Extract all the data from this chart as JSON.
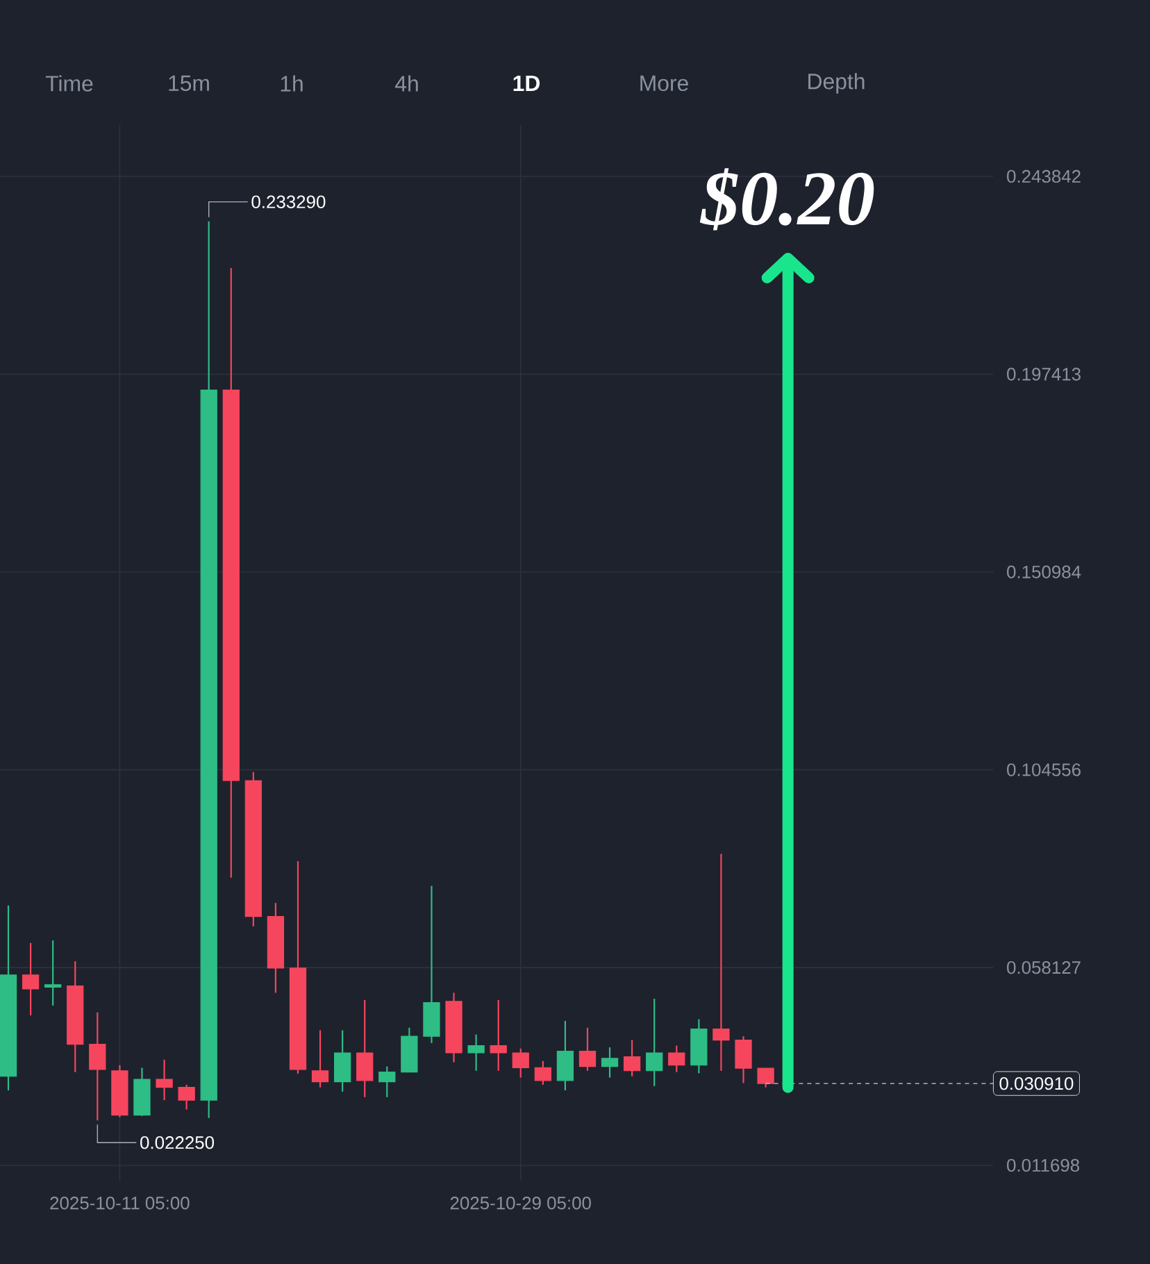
{
  "chart_data": {
    "type": "candlestick",
    "x": [
      "2025-10-06T05:00",
      "2025-10-07T05:00",
      "2025-10-08T05:00",
      "2025-10-09T05:00",
      "2025-10-10T05:00",
      "2025-10-11T05:00",
      "2025-10-12T05:00",
      "2025-10-13T05:00",
      "2025-10-14T05:00",
      "2025-10-15T05:00",
      "2025-10-16T05:00",
      "2025-10-17T05:00",
      "2025-10-18T05:00",
      "2025-10-19T05:00",
      "2025-10-20T05:00",
      "2025-10-21T05:00",
      "2025-10-22T05:00",
      "2025-10-23T05:00",
      "2025-10-24T05:00",
      "2025-10-25T05:00",
      "2025-10-26T05:00",
      "2025-10-27T05:00",
      "2025-10-28T05:00",
      "2025-10-29T05:00",
      "2025-10-30T05:00",
      "2025-10-31T05:00",
      "2025-11-01T05:00",
      "2025-11-02T05:00",
      "2025-11-03T05:00",
      "2025-11-04T05:00",
      "2025-11-05T05:00",
      "2025-11-06T05:00",
      "2025-11-07T05:00",
      "2025-11-08T05:00",
      "2025-11-09T05:00"
    ],
    "ohlc": [
      [
        0.0326,
        0.0727,
        0.0293,
        0.0564
      ],
      [
        0.0564,
        0.0639,
        0.0469,
        0.0531
      ],
      [
        0.0535,
        0.0645,
        0.0492,
        0.0541
      ],
      [
        0.0538,
        0.0596,
        0.0336,
        0.0401
      ],
      [
        0.0401,
        0.0476,
        0.02225,
        0.0342
      ],
      [
        0.0339,
        0.0352,
        0.023,
        0.0235
      ],
      [
        0.0235,
        0.0346,
        0.0233,
        0.0319
      ],
      [
        0.0319,
        0.0365,
        0.027,
        0.03
      ],
      [
        0.03,
        0.0306,
        0.0248,
        0.027
      ],
      [
        0.027,
        0.23329,
        0.0228,
        0.1937
      ],
      [
        0.1937,
        0.2223,
        0.0792,
        0.102
      ],
      [
        0.102,
        0.104,
        0.0678,
        0.0701
      ],
      [
        0.0701,
        0.0733,
        0.0522,
        0.058
      ],
      [
        0.058,
        0.0831,
        0.0332,
        0.0342
      ],
      [
        0.0339,
        0.0434,
        0.03,
        0.0313
      ],
      [
        0.0313,
        0.0434,
        0.029,
        0.0381
      ],
      [
        0.0381,
        0.0505,
        0.0277,
        0.0316
      ],
      [
        0.0313,
        0.0349,
        0.0277,
        0.0336
      ],
      [
        0.0336,
        0.044,
        0.0336,
        0.042
      ],
      [
        0.042,
        0.0773,
        0.0404,
        0.0499
      ],
      [
        0.0502,
        0.0522,
        0.0359,
        0.0381
      ],
      [
        0.0381,
        0.0424,
        0.0339,
        0.0398
      ],
      [
        0.0398,
        0.0505,
        0.0339,
        0.0381
      ],
      [
        0.0381,
        0.0391,
        0.0323,
        0.0346
      ],
      [
        0.0346,
        0.0362,
        0.0306,
        0.0316
      ],
      [
        0.0316,
        0.0456,
        0.0293,
        0.0385
      ],
      [
        0.0385,
        0.044,
        0.0339,
        0.0349
      ],
      [
        0.0349,
        0.0394,
        0.0323,
        0.0368
      ],
      [
        0.0372,
        0.0411,
        0.0326,
        0.0339
      ],
      [
        0.0339,
        0.0508,
        0.0303,
        0.0381
      ],
      [
        0.0381,
        0.0398,
        0.0336,
        0.0352
      ],
      [
        0.0352,
        0.046,
        0.0333,
        0.0437
      ],
      [
        0.0437,
        0.0848,
        0.0339,
        0.0411
      ],
      [
        0.0411,
        0.042,
        0.031,
        0.0345
      ],
      [
        0.0345,
        0.0345,
        0.03,
        0.03091
      ]
    ],
    "colors": [
      "#2ebd85",
      "#f6465d",
      "#2ebd85",
      "#f6465d",
      "#f6465d",
      "#f6465d",
      "#2ebd85",
      "#f6465d",
      "#f6465d",
      "#2ebd85",
      "#f6465d",
      "#f6465d",
      "#f6465d",
      "#f6465d",
      "#f6465d",
      "#2ebd85",
      "#f6465d",
      "#2ebd85",
      "#2ebd85",
      "#2ebd85",
      "#f6465d",
      "#2ebd85",
      "#f6465d",
      "#f6465d",
      "#f6465d",
      "#2ebd85",
      "#f6465d",
      "#2ebd85",
      "#f6465d",
      "#2ebd85",
      "#f6465d",
      "#2ebd85",
      "#f6465d",
      "#f6465d",
      "#f6465d"
    ],
    "xlim": [
      "2025-10-05T20:00",
      "2025-11-19T10:00"
    ],
    "xticks": [
      {
        "value": "2025-10-11T05:00",
        "label": "2025-10-11 05:00"
      },
      {
        "value": "2025-10-29T05:00",
        "label": "2025-10-29 05:00"
      }
    ],
    "ylim": [
      0.0081,
      0.2559
    ],
    "yticks": [
      0.011698,
      0.058127,
      0.104556,
      0.150984,
      0.197413,
      0.243842
    ],
    "grid": true,
    "ref_lines": [
      {
        "axis": "y",
        "value": 0.03091,
        "label": "0.030910",
        "line_style": "dashed"
      }
    ],
    "annotations": [
      "Time",
      "15m",
      "1h",
      "4h",
      "1D",
      "More",
      "Depth",
      "$0.20",
      {
        "text": "0.233290",
        "x": "2025-10-15T05:00",
        "y": 0.23329
      },
      {
        "text": "0.022250",
        "x": "2025-10-10T05:00",
        "y": 0.02225
      }
    ]
  }
}
